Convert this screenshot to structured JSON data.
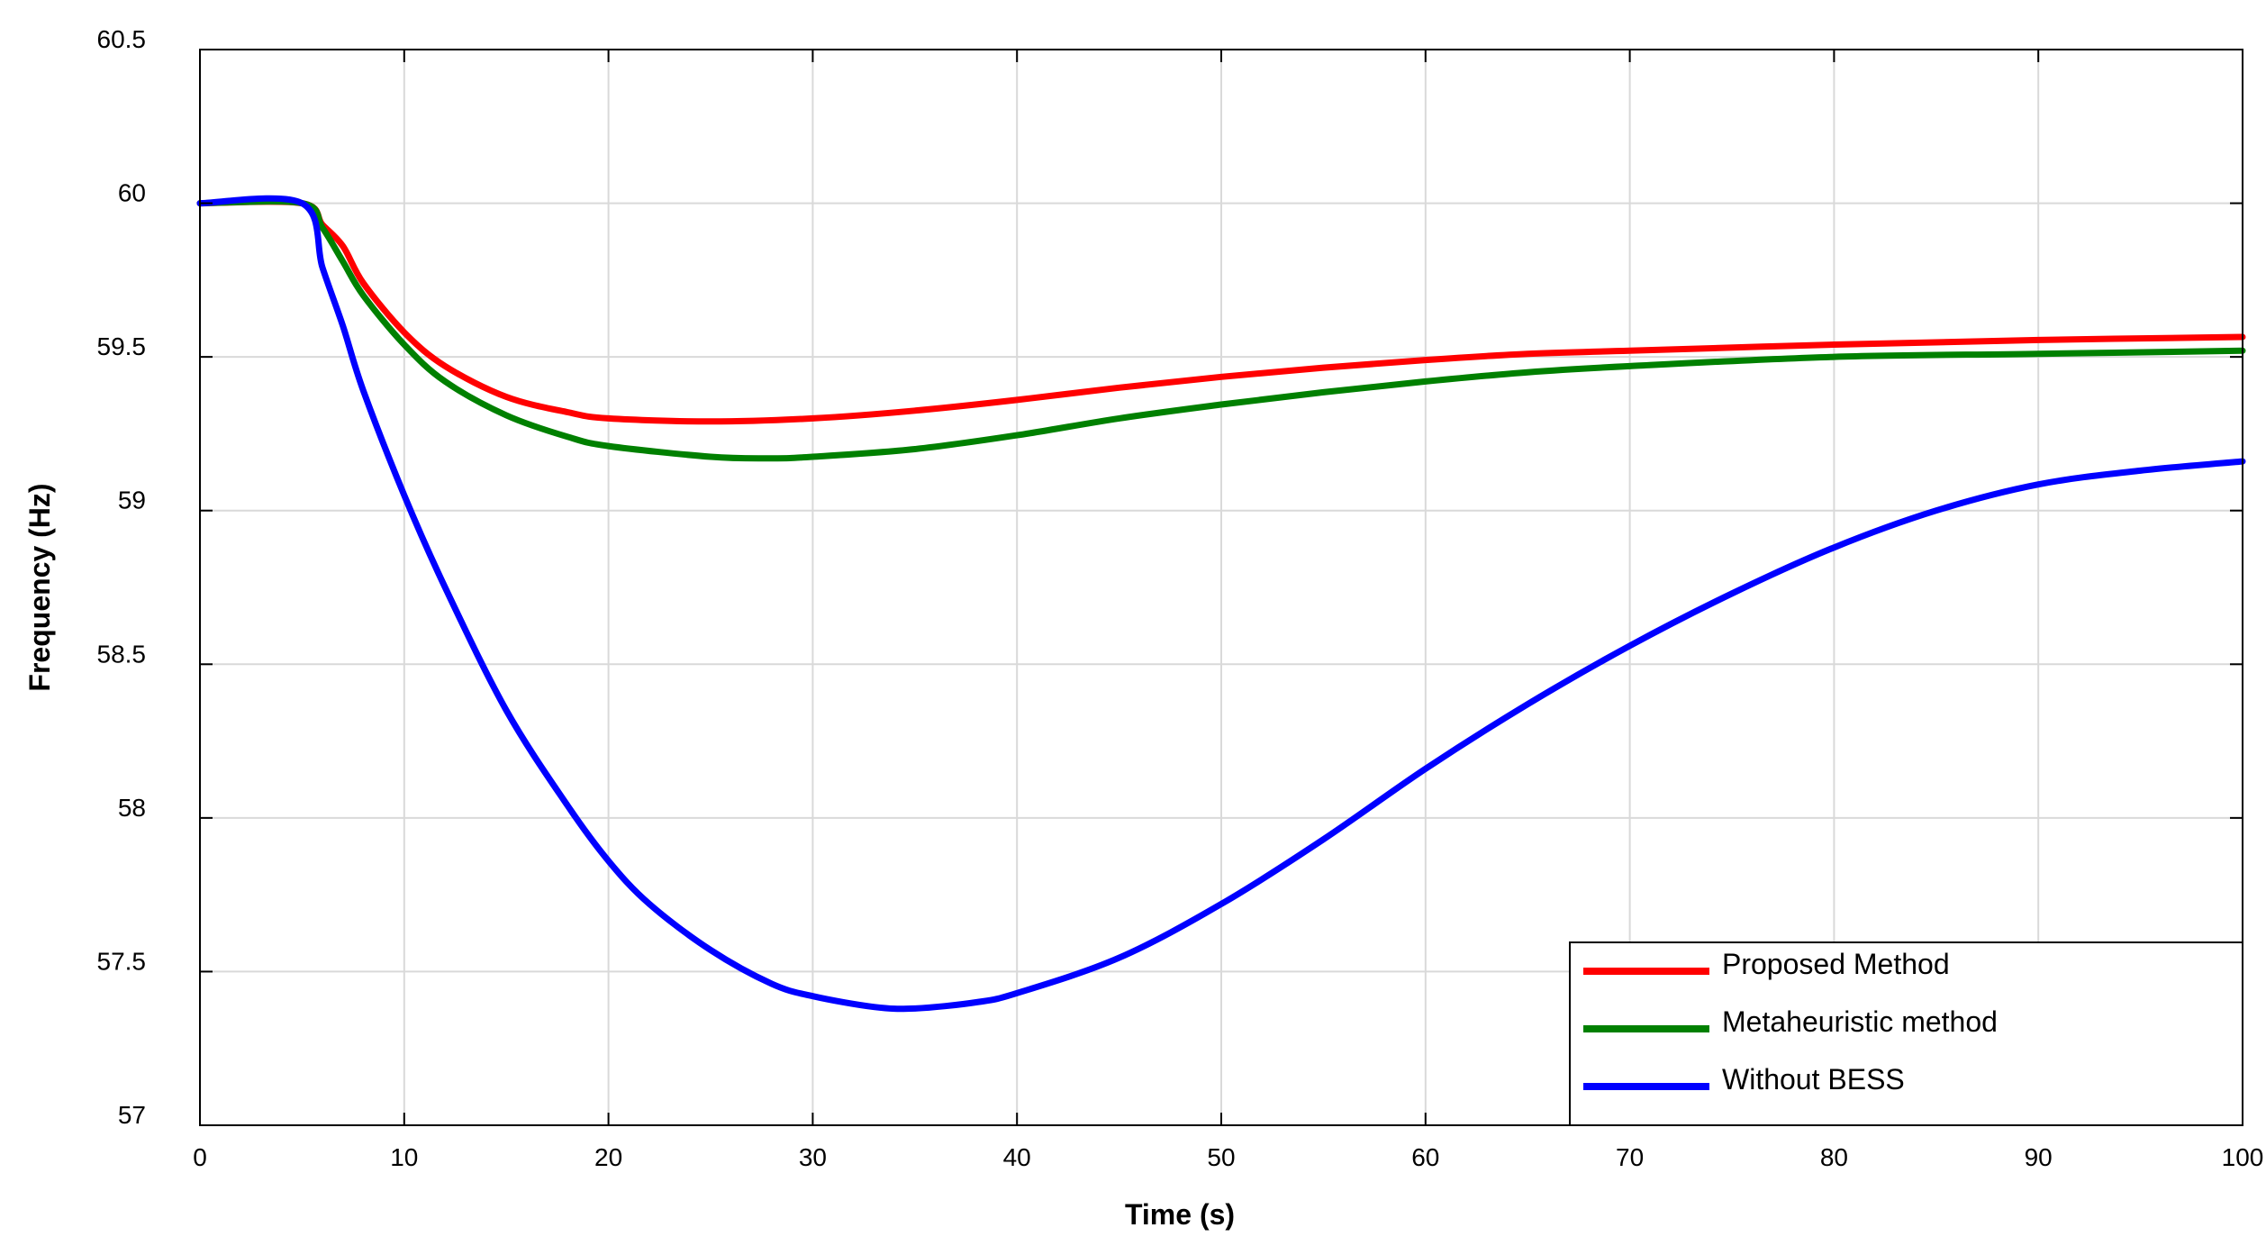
{
  "chart_data": {
    "type": "line",
    "title": "",
    "xlabel": "Time (s)",
    "ylabel": "Frequency (Hz)",
    "xlim": [
      0,
      100
    ],
    "ylim": [
      57,
      60.5
    ],
    "x_ticks": [
      0,
      10,
      20,
      30,
      40,
      50,
      60,
      70,
      80,
      90,
      100
    ],
    "y_ticks": [
      57,
      57.5,
      58,
      58.5,
      59,
      59.5,
      60,
      60.5
    ],
    "grid": true,
    "legend_position": "bottom-right",
    "series": [
      {
        "name": "Proposed Method",
        "color": "#ff0000",
        "points": [
          [
            0,
            60
          ],
          [
            5,
            60
          ],
          [
            6,
            59.93
          ],
          [
            7,
            59.86
          ],
          [
            8,
            59.74
          ],
          [
            10,
            59.58
          ],
          [
            12,
            59.47
          ],
          [
            15,
            59.37
          ],
          [
            18,
            59.32
          ],
          [
            20,
            59.3
          ],
          [
            25,
            59.29
          ],
          [
            30,
            59.3
          ],
          [
            35,
            59.325
          ],
          [
            40,
            59.36
          ],
          [
            45,
            59.4
          ],
          [
            50,
            59.435
          ],
          [
            55,
            59.465
          ],
          [
            60,
            59.49
          ],
          [
            65,
            59.51
          ],
          [
            70,
            59.52
          ],
          [
            80,
            59.54
          ],
          [
            90,
            59.555
          ],
          [
            100,
            59.565
          ]
        ]
      },
      {
        "name": "Metaheuristic method",
        "color": "#008000",
        "points": [
          [
            0,
            60
          ],
          [
            5,
            60
          ],
          [
            6,
            59.92
          ],
          [
            7,
            59.81
          ],
          [
            8,
            59.7
          ],
          [
            10,
            59.54
          ],
          [
            12,
            59.42
          ],
          [
            15,
            59.31
          ],
          [
            18,
            59.24
          ],
          [
            20,
            59.21
          ],
          [
            25,
            59.175
          ],
          [
            28,
            59.17
          ],
          [
            30,
            59.175
          ],
          [
            35,
            59.2
          ],
          [
            40,
            59.245
          ],
          [
            45,
            59.3
          ],
          [
            50,
            59.345
          ],
          [
            55,
            59.385
          ],
          [
            60,
            59.42
          ],
          [
            65,
            59.45
          ],
          [
            70,
            59.47
          ],
          [
            80,
            59.5
          ],
          [
            90,
            59.51
          ],
          [
            100,
            59.52
          ]
        ]
      },
      {
        "name": "Without BESS",
        "color": "#0000ff",
        "points": [
          [
            0,
            60
          ],
          [
            5,
            60
          ],
          [
            6,
            59.79
          ],
          [
            7,
            59.6
          ],
          [
            8,
            59.39
          ],
          [
            10,
            59.05
          ],
          [
            12,
            58.75
          ],
          [
            15,
            58.35
          ],
          [
            18,
            58.04
          ],
          [
            20,
            57.86
          ],
          [
            22,
            57.72
          ],
          [
            25,
            57.57
          ],
          [
            28,
            57.46
          ],
          [
            30,
            57.42
          ],
          [
            33,
            57.385
          ],
          [
            35,
            57.38
          ],
          [
            38,
            57.4
          ],
          [
            40,
            57.43
          ],
          [
            45,
            57.545
          ],
          [
            50,
            57.72
          ],
          [
            55,
            57.93
          ],
          [
            60,
            58.16
          ],
          [
            65,
            58.37
          ],
          [
            70,
            58.56
          ],
          [
            75,
            58.73
          ],
          [
            80,
            58.88
          ],
          [
            85,
            59.0
          ],
          [
            90,
            59.085
          ],
          [
            95,
            59.13
          ],
          [
            100,
            59.16
          ]
        ]
      }
    ]
  }
}
